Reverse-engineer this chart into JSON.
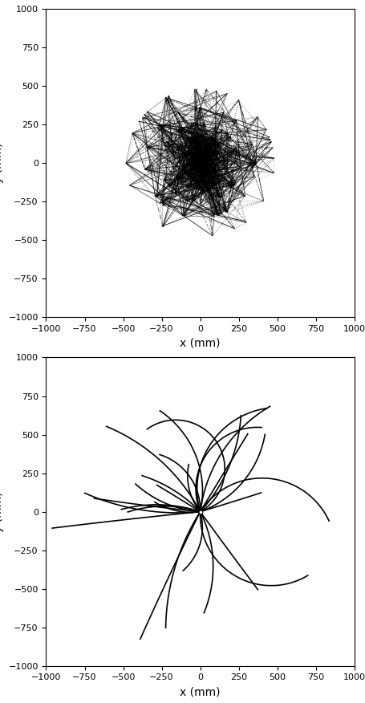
{
  "xlim": [
    -1000,
    1000
  ],
  "ylim": [
    -1000,
    1000
  ],
  "xlabel": "x (mm)",
  "ylabel": "y (mm)",
  "xticks": [
    -1000,
    -750,
    -500,
    -250,
    0,
    250,
    500,
    750,
    1000
  ],
  "yticks": [
    -1000,
    -750,
    -500,
    -250,
    0,
    250,
    500,
    750,
    1000
  ],
  "figsize": [
    4.56,
    8.76
  ],
  "dpi": 100
}
